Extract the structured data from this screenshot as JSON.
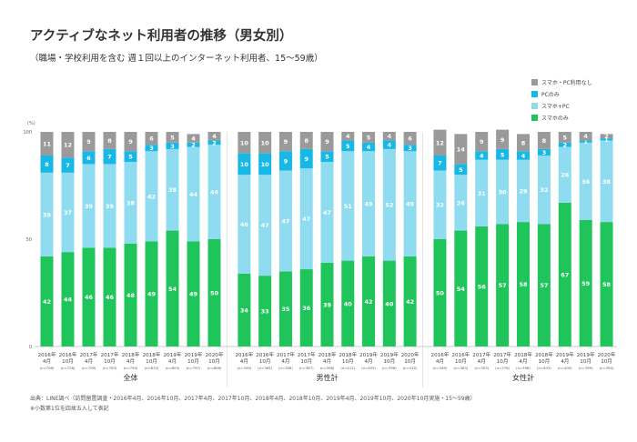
{
  "title": "アクティブなネット利用者の推移（男女別）",
  "subtitle": "（職場・学校利用を含む 週１回以上のインターネット利用者、15〜59歳）",
  "footer": {
    "source": "出典：LINE調べ（訪問留置調査・2016年4月、2016年10月、2017年4月、2017年10月、2018年4月、2018年10月、2019年4月、2019年10月、2020年10月実施・15〜59歳）",
    "note": "※小数第1位を四捨五入して表記"
  },
  "colors": {
    "none": "#9a9a9a",
    "pc_only": "#18b8e6",
    "both": "#8fdcf1",
    "phone_only": "#1fc55a"
  },
  "chart_data": {
    "type": "bar",
    "stacked": true,
    "percent_symbol": "(%)",
    "ylim": [
      0,
      100
    ],
    "yticks": [
      "0",
      "50",
      "100"
    ],
    "legend": [
      {
        "key": "none",
        "label": "スマホ・PC利用なし"
      },
      {
        "key": "pc_only",
        "label": "PCのみ"
      },
      {
        "key": "both",
        "label": "スマホ+PC"
      },
      {
        "key": "phone_only",
        "label": "スマホのみ"
      }
    ],
    "legend_position": "top-right",
    "groups": [
      {
        "name": "全体",
        "categories": [
          {
            "label": [
              "2016年",
              "4月"
            ],
            "n": "(n=708)"
          },
          {
            "label": [
              "2016年",
              "10月"
            ],
            "n": "(n=728)"
          },
          {
            "label": [
              "2017年",
              "4月"
            ],
            "n": "(n=709)"
          },
          {
            "label": [
              "2017年",
              "10月"
            ],
            "n": "(n=763)"
          },
          {
            "label": [
              "2018年",
              "4月"
            ],
            "n": "(n=794)"
          },
          {
            "label": [
              "2018年",
              "10月"
            ],
            "n": "(n=815)"
          },
          {
            "label": [
              "2019年",
              "4月"
            ],
            "n": "(n=803)"
          },
          {
            "label": [
              "2019年",
              "10月"
            ],
            "n": "(n=797)"
          },
          {
            "label": [
              "2020年",
              "10月"
            ],
            "n": "(n=806)"
          }
        ],
        "series": {
          "phone_only": [
            42,
            44,
            46,
            46,
            48,
            49,
            54,
            49,
            50
          ],
          "both": [
            39,
            37,
            39,
            39,
            38,
            42,
            38,
            44,
            44
          ],
          "pc_only": [
            8,
            7,
            6,
            7,
            5,
            3,
            3,
            2,
            2
          ],
          "none": [
            11,
            12,
            9,
            8,
            9,
            6,
            5,
            4,
            4
          ]
        }
      },
      {
        "name": "男性計",
        "categories": [
          {
            "label": [
              "2016年",
              "4月"
            ],
            "n": "(n=359)"
          },
          {
            "label": [
              "2016年",
              "10月"
            ],
            "n": "(n=365)"
          },
          {
            "label": [
              "2017年",
              "4月"
            ],
            "n": "(n=356)"
          },
          {
            "label": [
              "2017年",
              "10月"
            ],
            "n": "(n=387)"
          },
          {
            "label": [
              "2018年",
              "4月"
            ],
            "n": "(n=398)"
          },
          {
            "label": [
              "2018年",
              "10月"
            ],
            "n": "(n=412)"
          },
          {
            "label": [
              "2019年",
              "4月"
            ],
            "n": "(n=403)"
          },
          {
            "label": [
              "2019年",
              "10月"
            ],
            "n": "(n=398)"
          },
          {
            "label": [
              "2020年",
              "10月"
            ],
            "n": "(n=412)"
          }
        ],
        "series": {
          "phone_only": [
            34,
            33,
            35,
            36,
            39,
            40,
            42,
            40,
            42
          ],
          "both": [
            46,
            47,
            47,
            47,
            47,
            51,
            49,
            52,
            49
          ],
          "pc_only": [
            10,
            10,
            9,
            9,
            5,
            5,
            4,
            4,
            3
          ],
          "none": [
            10,
            10,
            9,
            8,
            9,
            4,
            5,
            4,
            6
          ]
        }
      },
      {
        "name": "女性計",
        "categories": [
          {
            "label": [
              "2016年",
              "4月"
            ],
            "n": "(n=349)"
          },
          {
            "label": [
              "2016年",
              "10月"
            ],
            "n": "(n=363)"
          },
          {
            "label": [
              "2017年",
              "4月"
            ],
            "n": "(n=353)"
          },
          {
            "label": [
              "2017年",
              "10月"
            ],
            "n": "(n=376)"
          },
          {
            "label": [
              "2018年",
              "4月"
            ],
            "n": "(n=396)"
          },
          {
            "label": [
              "2018年",
              "10月"
            ],
            "n": "(n=403)"
          },
          {
            "label": [
              "2019年",
              "4月"
            ],
            "n": "(n=400)"
          },
          {
            "label": [
              "2019年",
              "10月"
            ],
            "n": "(n=399)"
          },
          {
            "label": [
              "2020年",
              "10月"
            ],
            "n": "(n=394)"
          }
        ],
        "series": {
          "phone_only": [
            50,
            54,
            56,
            57,
            58,
            57,
            67,
            59,
            58
          ],
          "both": [
            32,
            26,
            31,
            30,
            29,
            32,
            26,
            36,
            38
          ],
          "pc_only": [
            7,
            5,
            4,
            5,
            4,
            3,
            2,
            1,
            1
          ],
          "none": [
            12,
            14,
            9,
            9,
            8,
            8,
            5,
            4,
            2
          ]
        }
      }
    ]
  }
}
